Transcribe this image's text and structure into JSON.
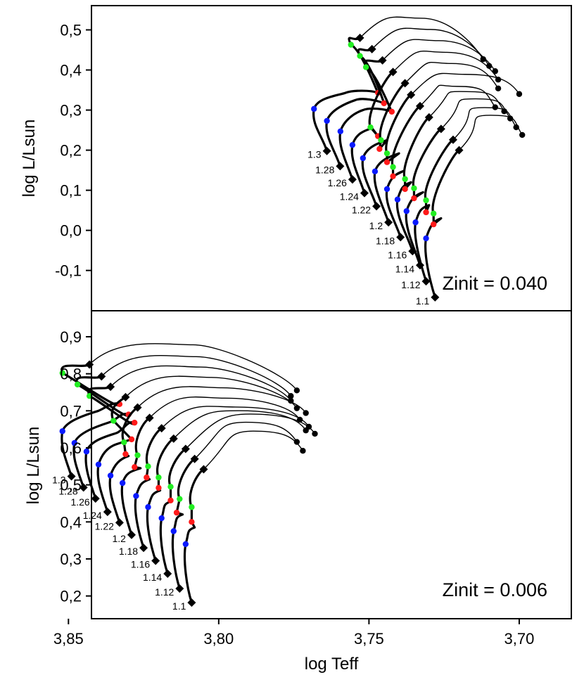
{
  "chart_data": {
    "type": "line",
    "title": "",
    "xlabel": "log Teff",
    "ylabel": "log L/Lsun",
    "xlim": [
      3.84,
      3.685
    ],
    "x_ticks": [
      3.85,
      3.8,
      3.75,
      3.7
    ],
    "x_tick_labels": [
      "3,85",
      "3,80",
      "3,75",
      "3,70"
    ],
    "x_axis_reversed": true,
    "marker_colors": {
      "track": "#000000",
      "blue": "#0a1aff",
      "red": "#ff1a1a",
      "green": "#22ee22"
    },
    "panels": [
      {
        "name": "top",
        "annotation": "Zinit = 0.040",
        "ylim": [
          -0.19,
          0.55
        ],
        "y_ticks": [
          -0.1,
          0.0,
          0.1,
          0.2,
          0.3,
          0.4,
          0.5
        ],
        "y_tick_labels": [
          "-0,1",
          "0,0",
          "0,1",
          "0,2",
          "0,3",
          "0,4",
          "0,5"
        ],
        "tracks": [
          {
            "mass": "1.3",
            "start": [
              3.764,
              0.198
            ],
            "blue": [
              3.7683,
              0.303
            ],
            "hook": [
              3.7578,
              0.343
            ],
            "red": [
              3.747,
              0.343
            ],
            "green": [
              3.756,
              0.463
            ],
            "top": [
              3.753,
              0.48
            ],
            "end": [
              3.712,
              0.427
            ],
            "hook_sharp": false
          },
          {
            "mass": "1.28",
            "start": [
              3.7596,
              0.16
            ],
            "blue": [
              3.764,
              0.273
            ],
            "hook": [
              3.7545,
              0.325
            ],
            "red": [
              3.745,
              0.317
            ],
            "green": [
              3.753,
              0.435
            ],
            "top": [
              3.749,
              0.452
            ],
            "end": [
              3.71,
              0.41
            ],
            "hook_sharp": false
          },
          {
            "mass": "1.26",
            "start": [
              3.7555,
              0.127
            ],
            "blue": [
              3.7595,
              0.247
            ],
            "hook": [
              3.752,
              0.3
            ],
            "red": [
              3.7424,
              0.296
            ],
            "green": [
              3.751,
              0.407
            ],
            "top": [
              3.7455,
              0.424
            ],
            "end": [
              3.708,
              0.397
            ],
            "hook_sharp": false
          },
          {
            "mass": "1.24",
            "start": [
              3.7515,
              0.093
            ],
            "blue": [
              3.7555,
              0.213
            ],
            "hook": [
              3.749,
              0.255
            ],
            "red": [
              3.747,
              0.235
            ],
            "green": [
              3.7495,
              0.257
            ],
            "top": [
              3.742,
              0.395
            ],
            "end": [
              3.707,
              0.376
            ],
            "hook_sharp": true
          },
          {
            "mass": "1.22",
            "start": [
              3.7475,
              0.06
            ],
            "blue": [
              3.752,
              0.18
            ],
            "hook": [
              3.744,
              0.225
            ],
            "red": [
              3.7465,
              0.203
            ],
            "green": [
              3.746,
              0.225
            ],
            "top": [
              3.738,
              0.367
            ],
            "end": [
              3.707,
              0.354
            ],
            "hook_sharp": true
          },
          {
            "mass": "1.2",
            "start": [
              3.7435,
              0.02
            ],
            "blue": [
              3.748,
              0.147
            ],
            "hook": [
              3.74,
              0.192
            ],
            "red": [
              3.744,
              0.17
            ],
            "green": [
              3.744,
              0.192
            ],
            "top": [
              3.736,
              0.338
            ],
            "end": [
              3.7,
              0.34
            ],
            "hook_sharp": true
          },
          {
            "mass": "1.18",
            "start": [
              3.7395,
              -0.017
            ],
            "blue": [
              3.744,
              0.103
            ],
            "hook": [
              3.7385,
              0.148
            ],
            "red": [
              3.742,
              0.135
            ],
            "green": [
              3.742,
              0.158
            ],
            "top": [
              3.733,
              0.31
            ],
            "end": [
              3.708,
              0.307
            ],
            "hook_sharp": true
          },
          {
            "mass": "1.16",
            "start": [
              3.7355,
              -0.052
            ],
            "blue": [
              3.7405,
              0.077
            ],
            "hook": [
              3.736,
              0.12
            ],
            "red": [
              3.738,
              0.103
            ],
            "green": [
              3.738,
              0.128
            ],
            "top": [
              3.73,
              0.282
            ],
            "end": [
              3.705,
              0.297
            ],
            "hook_sharp": true
          },
          {
            "mass": "1.14",
            "start": [
              3.733,
              -0.087
            ],
            "blue": [
              3.7375,
              0.048
            ],
            "hook": [
              3.732,
              0.095
            ],
            "red": [
              3.735,
              0.08
            ],
            "green": [
              3.735,
              0.105
            ],
            "top": [
              3.726,
              0.253
            ],
            "end": [
              3.703,
              0.279
            ],
            "hook_sharp": true
          },
          {
            "mass": "1.12",
            "start": [
              3.731,
              -0.127
            ],
            "blue": [
              3.7345,
              0.02
            ],
            "hook": [
              3.73,
              0.063
            ],
            "red": [
              3.731,
              0.045
            ],
            "green": [
              3.731,
              0.075
            ],
            "top": [
              3.722,
              0.226
            ],
            "end": [
              3.701,
              0.257
            ],
            "hook_sharp": true
          },
          {
            "mass": "1.1",
            "start": [
              3.728,
              -0.167
            ],
            "blue": [
              3.731,
              -0.02
            ],
            "hook": [
              3.726,
              0.03
            ],
            "red": [
              3.7285,
              0.015
            ],
            "green": [
              3.7285,
              0.042
            ],
            "top": [
              3.72,
              0.2
            ],
            "end": [
              3.699,
              0.238
            ],
            "hook_sharp": true
          }
        ]
      },
      {
        "name": "bottom",
        "annotation": "Zinit = 0.006",
        "ylim": [
          0.15,
          0.955
        ],
        "y_ticks": [
          0.2,
          0.3,
          0.4,
          0.5,
          0.6,
          0.7,
          0.8,
          0.9
        ],
        "y_tick_labels": [
          "0,2",
          "0,3",
          "0,4",
          "0,5",
          "0,6",
          "0,7",
          "0,8",
          "0,9"
        ],
        "tracks": [
          {
            "mass": "1.3",
            "start": [
              3.849,
              0.523
            ],
            "blue": [
              3.852,
              0.645
            ],
            "hook": [
              3.84,
              0.7
            ],
            "red": [
              3.833,
              0.718
            ],
            "green": [
              3.852,
              0.802
            ],
            "top": [
              3.843,
              0.825
            ],
            "end": [
              3.774,
              0.755
            ],
            "hook_sharp": false
          },
          {
            "mass": "1.28",
            "start": [
              3.845,
              0.493
            ],
            "blue": [
              3.848,
              0.613
            ],
            "hook": [
              3.836,
              0.67
            ],
            "red": [
              3.83,
              0.69
            ],
            "green": [
              3.847,
              0.771
            ],
            "top": [
              3.839,
              0.793
            ],
            "end": [
              3.776,
              0.74
            ],
            "hook_sharp": false
          },
          {
            "mass": "1.26",
            "start": [
              3.841,
              0.463
            ],
            "blue": [
              3.844,
              0.59
            ],
            "hook": [
              3.834,
              0.64
            ],
            "red": [
              3.828,
              0.668
            ],
            "green": [
              3.843,
              0.74
            ],
            "top": [
              3.836,
              0.765
            ],
            "end": [
              3.776,
              0.727
            ],
            "hook_sharp": false
          },
          {
            "mass": "1.24",
            "start": [
              3.837,
              0.427
            ],
            "blue": [
              3.84,
              0.555
            ],
            "hook": [
              3.834,
              0.61
            ],
            "red": [
              3.829,
              0.623
            ],
            "green": [
              3.835,
              0.673
            ],
            "top": [
              3.831,
              0.737
            ],
            "end": [
              3.774,
              0.707
            ],
            "hook_sharp": true
          },
          {
            "mass": "1.22",
            "start": [
              3.833,
              0.398
            ],
            "blue": [
              3.836,
              0.525
            ],
            "hook": [
              3.83,
              0.578
            ],
            "red": [
              3.831,
              0.583
            ],
            "green": [
              3.8315,
              0.615
            ],
            "top": [
              3.827,
              0.709
            ],
            "end": [
              3.771,
              0.694
            ],
            "hook_sharp": true
          },
          {
            "mass": "1.2",
            "start": [
              3.829,
              0.365
            ],
            "blue": [
              3.832,
              0.505
            ],
            "hook": [
              3.826,
              0.545
            ],
            "red": [
              3.828,
              0.548
            ],
            "green": [
              3.827,
              0.58
            ],
            "top": [
              3.823,
              0.681
            ],
            "end": [
              3.773,
              0.676
            ],
            "hook_sharp": true
          },
          {
            "mass": "1.18",
            "start": [
              3.825,
              0.33
            ],
            "blue": [
              3.8275,
              0.47
            ],
            "hook": [
              3.823,
              0.515
            ],
            "red": [
              3.824,
              0.52
            ],
            "green": [
              3.8235,
              0.55
            ],
            "top": [
              3.819,
              0.653
            ],
            "end": [
              3.77,
              0.657
            ],
            "hook_sharp": true
          },
          {
            "mass": "1.16",
            "start": [
              3.821,
              0.295
            ],
            "blue": [
              3.8235,
              0.44
            ],
            "hook": [
              3.8195,
              0.485
            ],
            "red": [
              3.82,
              0.492
            ],
            "green": [
              3.82,
              0.52
            ],
            "top": [
              3.815,
              0.625
            ],
            "end": [
              3.771,
              0.647
            ],
            "hook_sharp": true
          },
          {
            "mass": "1.14",
            "start": [
              3.817,
              0.26
            ],
            "blue": [
              3.819,
              0.41
            ],
            "hook": [
              3.816,
              0.455
            ],
            "red": [
              3.816,
              0.458
            ],
            "green": [
              3.816,
              0.495
            ],
            "top": [
              3.811,
              0.597
            ],
            "end": [
              3.768,
              0.638
            ],
            "hook_sharp": true
          },
          {
            "mass": "1.12",
            "start": [
              3.813,
              0.22
            ],
            "blue": [
              3.815,
              0.375
            ],
            "hook": [
              3.812,
              0.42
            ],
            "red": [
              3.814,
              0.425
            ],
            "green": [
              3.813,
              0.462
            ],
            "top": [
              3.808,
              0.57
            ],
            "end": [
              3.774,
              0.616
            ],
            "hook_sharp": true
          },
          {
            "mass": "1.1",
            "start": [
              3.809,
              0.182
            ],
            "blue": [
              3.811,
              0.34
            ],
            "hook": [
              3.808,
              0.385
            ],
            "red": [
              3.809,
              0.4
            ],
            "green": [
              3.809,
              0.44
            ],
            "top": [
              3.805,
              0.542
            ],
            "end": [
              3.772,
              0.592
            ],
            "hook_sharp": true
          }
        ]
      }
    ]
  }
}
